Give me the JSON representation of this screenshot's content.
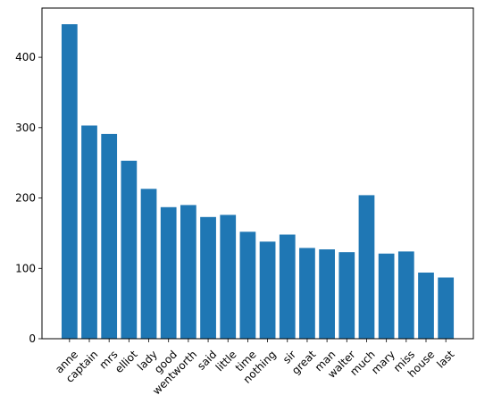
{
  "chart_data": {
    "type": "bar",
    "title": "",
    "xlabel": "",
    "ylabel": "",
    "categories": [
      "anne",
      "captain",
      "mrs",
      "elliot",
      "lady",
      "good",
      "wentworth",
      "said",
      "little",
      "time",
      "nothing",
      "sir",
      "great",
      "man",
      "walter",
      "much",
      "mary",
      "miss",
      "house",
      "last"
    ],
    "values": [
      447,
      303,
      291,
      253,
      213,
      187,
      190,
      173,
      176,
      152,
      138,
      148,
      129,
      127,
      123,
      204,
      121,
      124,
      94,
      87
    ],
    "ylim": [
      0,
      470
    ],
    "yticks": [
      0,
      100,
      200,
      300,
      400
    ],
    "grid": false,
    "legend": "none",
    "bar_color": "#1f77b4"
  }
}
